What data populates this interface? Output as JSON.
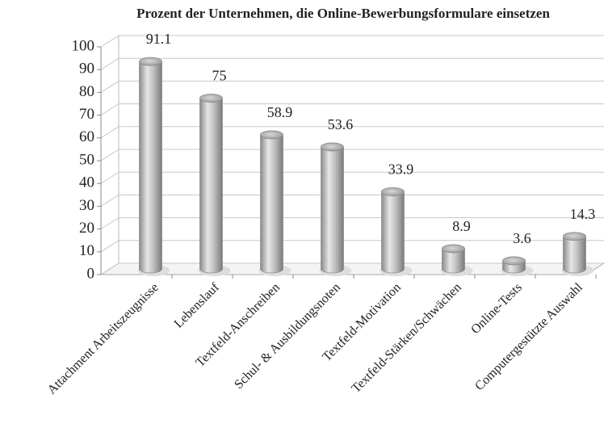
{
  "chart_data": {
    "type": "bar",
    "title": "Prozent der Unternehmen, die Online-Bewerbungsformulare einsetzen",
    "categories": [
      "Attachment Arbeitszeugnisse",
      "Lebenslauf",
      "Textfeld-Anschreiben",
      "Schul- & Ausbildungsnoten",
      "Textfeld-Motivation",
      "Textfeld-Stärken/Schwächen",
      "Online-Tests",
      "Computergestützte Auswahl"
    ],
    "values": [
      91.1,
      75,
      58.9,
      53.6,
      33.9,
      8.9,
      3.6,
      14.3
    ],
    "color": "#b5b5b5",
    "ylim": [
      0,
      100
    ],
    "yticks": [
      0,
      10,
      20,
      30,
      40,
      50,
      60,
      70,
      80,
      90,
      100
    ],
    "grid": true
  }
}
